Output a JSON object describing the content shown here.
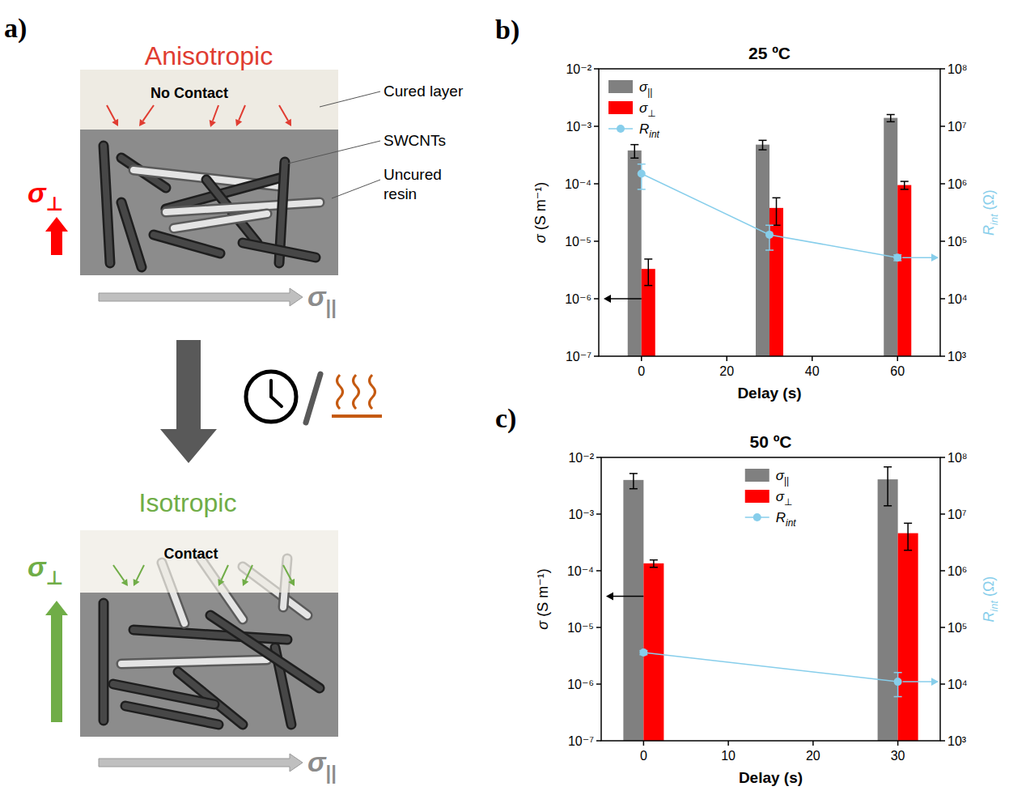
{
  "diagram": {
    "panel_label": "a)",
    "top": {
      "title": "Anisotropic",
      "contact": "No Contact",
      "sigma_perp": "σ⊥",
      "sigma_par": "σ||"
    },
    "labels": {
      "cured": "Cured layer",
      "cnt": "SWCNTs",
      "uncured": "Uncured resin"
    },
    "bottom": {
      "title": "Isotropic",
      "contact": "Contact",
      "sigma_perp": "σ⊥",
      "sigma_par": "σ||"
    }
  },
  "chart_data": [
    {
      "panel_label": "b)",
      "type": "bar",
      "title": "25 ºC",
      "x_label": "Delay (s)",
      "y_label": "σ (S m⁻¹)",
      "y2_label": "Rint (Ω)",
      "x": [
        0,
        30,
        60
      ],
      "xlim": [
        -10,
        70
      ],
      "xticks": [
        0,
        20,
        40,
        60
      ],
      "log": "y",
      "ylim": [
        1e-07,
        0.01
      ],
      "yticks": [
        {
          "value": 1e-07,
          "label": "10⁻⁷"
        },
        {
          "value": 1e-06,
          "label": "10⁻⁶"
        },
        {
          "value": 1e-05,
          "label": "10⁻⁵"
        },
        {
          "value": 0.0001,
          "label": "10⁻⁴"
        },
        {
          "value": 0.001,
          "label": "10⁻³"
        },
        {
          "value": 0.01,
          "label": "10⁻²"
        }
      ],
      "y2lim": [
        1000,
        100000000
      ],
      "y2ticks": [
        {
          "value": 1000,
          "label": "10³"
        },
        {
          "value": 10000,
          "label": "10⁴"
        },
        {
          "value": 100000,
          "label": "10⁵"
        },
        {
          "value": 1000000,
          "label": "10⁶"
        },
        {
          "value": 10000000,
          "label": "10⁷"
        },
        {
          "value": 100000000,
          "label": "10⁸"
        }
      ],
      "legend": "upper left",
      "series": [
        {
          "name": "σ||",
          "type": "bar",
          "color": "#808080",
          "values": [
            0.00038,
            0.00048,
            0.0014
          ],
          "errors": [
            0.0001,
            9e-05,
            0.0002
          ]
        },
        {
          "name": "σ⊥",
          "type": "bar",
          "color": "#ff0000",
          "values": [
            3.3e-06,
            3.8e-05,
            9.5e-05
          ],
          "errors": [
            1.6e-06,
            1.9e-05,
            1.5e-05
          ]
        },
        {
          "name": "Rint",
          "type": "line",
          "axis": "y2",
          "color": "#87ceeb",
          "marker": "circle",
          "values": [
            1500000.0,
            130000.0,
            52000.0
          ],
          "errors": [
            700000.0,
            60000.0,
            6000.0
          ]
        }
      ]
    },
    {
      "panel_label": "c)",
      "type": "bar",
      "title": "50 ºC",
      "x_label": "Delay (s)",
      "y_label": "σ (S m⁻¹)",
      "y2_label": "Rint (Ω)",
      "x": [
        0,
        30
      ],
      "xlim": [
        -5,
        35
      ],
      "xticks": [
        0,
        10,
        20,
        30
      ],
      "log": "y",
      "ylim": [
        1e-07,
        0.01
      ],
      "yticks": [
        {
          "value": 1e-07,
          "label": "10⁻⁷"
        },
        {
          "value": 1e-06,
          "label": "10⁻⁶"
        },
        {
          "value": 1e-05,
          "label": "10⁻⁵"
        },
        {
          "value": 0.0001,
          "label": "10⁻⁴"
        },
        {
          "value": 0.001,
          "label": "10⁻³"
        },
        {
          "value": 0.01,
          "label": "10⁻²"
        }
      ],
      "y2lim": [
        1000,
        100000000
      ],
      "y2ticks": [
        {
          "value": 1000,
          "label": "10³"
        },
        {
          "value": 10000,
          "label": "10⁴"
        },
        {
          "value": 100000,
          "label": "10⁵"
        },
        {
          "value": 1000000,
          "label": "10⁶"
        },
        {
          "value": 10000000,
          "label": "10⁷"
        },
        {
          "value": 100000000,
          "label": "10⁸"
        }
      ],
      "legend": "upper center",
      "series": [
        {
          "name": "σ||",
          "type": "bar",
          "color": "#808080",
          "values": [
            0.004,
            0.0041
          ],
          "errors": [
            0.0012,
            0.0027
          ]
        },
        {
          "name": "σ⊥",
          "type": "bar",
          "color": "#ff0000",
          "values": [
            0.000135,
            0.00046
          ],
          "errors": [
            2e-05,
            0.00023
          ]
        },
        {
          "name": "Rint",
          "type": "line",
          "axis": "y2",
          "color": "#87ceeb",
          "marker": "circle",
          "values": [
            36000.0,
            11000.0
          ],
          "errors": [
            3000.0,
            5000.0
          ]
        }
      ]
    }
  ]
}
